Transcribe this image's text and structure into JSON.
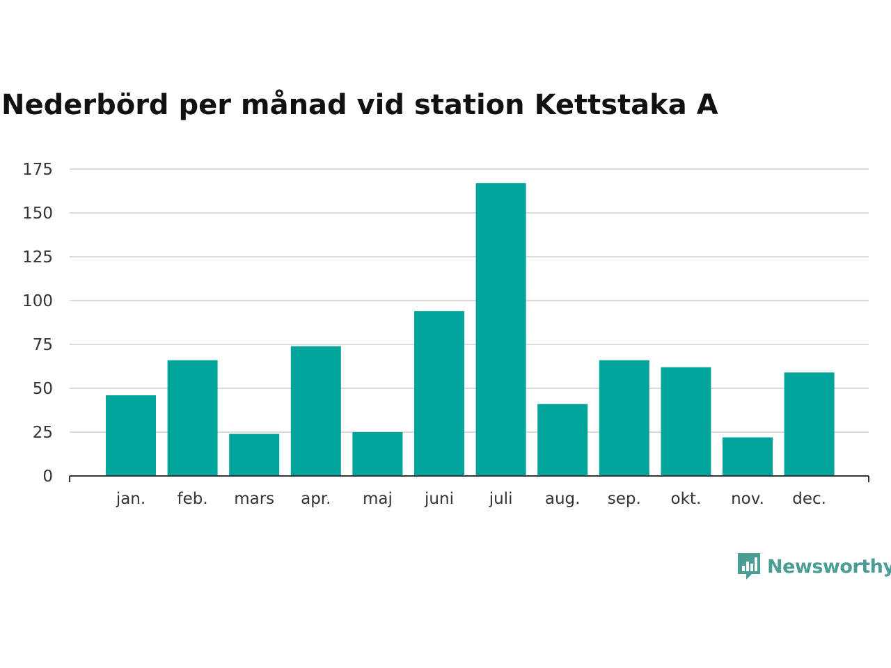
{
  "brand": {
    "name": "Newsworthy",
    "color": "#4a9d94"
  },
  "chart_data": {
    "type": "bar",
    "title": "Nederbörd per månad vid station Kettstaka A",
    "categories": [
      "jan.",
      "feb.",
      "mars",
      "apr.",
      "maj",
      "juni",
      "juli",
      "aug.",
      "sep.",
      "okt.",
      "nov.",
      "dec."
    ],
    "values": [
      46,
      66,
      24,
      74,
      25,
      94,
      167,
      41,
      66,
      62,
      22,
      59
    ],
    "yticks": [
      0,
      25,
      50,
      75,
      100,
      125,
      150,
      175
    ],
    "ylim": [
      0,
      175
    ],
    "xlabel": "",
    "ylabel": "",
    "grid": true,
    "bar_color": "#00a49a"
  }
}
